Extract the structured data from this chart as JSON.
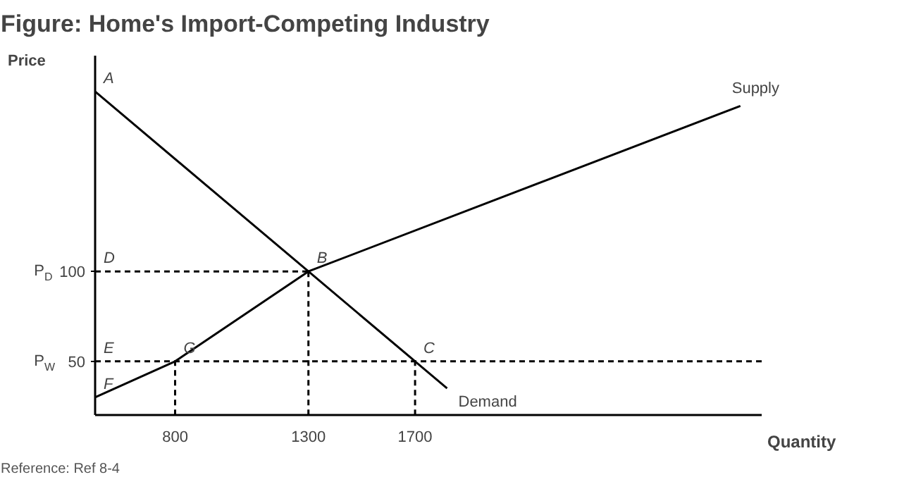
{
  "chart_data": {
    "type": "line",
    "title": "Figure: Home's Import-Competing Industry",
    "xlabel": "Quantity",
    "ylabel": "Price",
    "xlim": [
      500,
      3000
    ],
    "ylim": [
      20,
      220
    ],
    "xticks": [
      800,
      1300,
      1700
    ],
    "yticks": [
      50,
      100
    ],
    "grid": false,
    "legend": false,
    "series": [
      {
        "name": "Demand",
        "color": "#000000",
        "x": [
          500,
          1300,
          1700,
          1820
        ],
        "values": [
          200,
          100,
          50,
          35
        ],
        "line_style": "solid"
      },
      {
        "name": "Supply",
        "color": "#000000",
        "x": [
          500,
          800,
          1300,
          2920
        ],
        "values": [
          30,
          50,
          100,
          192
        ],
        "line_style": "solid"
      },
      {
        "color": "#000000",
        "x": [
          500,
          1300
        ],
        "values": [
          100,
          100
        ],
        "line_style": "dashed"
      },
      {
        "color": "#000000",
        "x": [
          500,
          3000
        ],
        "values": [
          50,
          50
        ],
        "line_style": "dashed"
      },
      {
        "color": "#000000",
        "x": [
          800,
          800
        ],
        "values": [
          20,
          50
        ],
        "line_style": "dashed"
      },
      {
        "color": "#000000",
        "x": [
          1300,
          1300
        ],
        "values": [
          20,
          100
        ],
        "line_style": "dashed"
      },
      {
        "color": "#000000",
        "x": [
          1700,
          1700
        ],
        "values": [
          20,
          50
        ],
        "line_style": "dashed"
      }
    ],
    "annotations": [
      {
        "text": "P$_{D}$",
        "x": 500,
        "y": 100
      },
      {
        "text": "P$_{W}$",
        "x": 500,
        "y": 50
      },
      {
        "text": "A",
        "x": 500,
        "y": 200
      },
      {
        "text": "D",
        "x": 500,
        "y": 100
      },
      {
        "text": "E",
        "x": 500,
        "y": 50
      },
      {
        "text": "F",
        "x": 500,
        "y": 30
      },
      {
        "text": "B",
        "x": 1300,
        "y": 100
      },
      {
        "text": "C",
        "x": 1700,
        "y": 50
      },
      {
        "text": "G",
        "x": 800,
        "y": 50
      },
      "Reference: Ref 8-4"
    ]
  }
}
